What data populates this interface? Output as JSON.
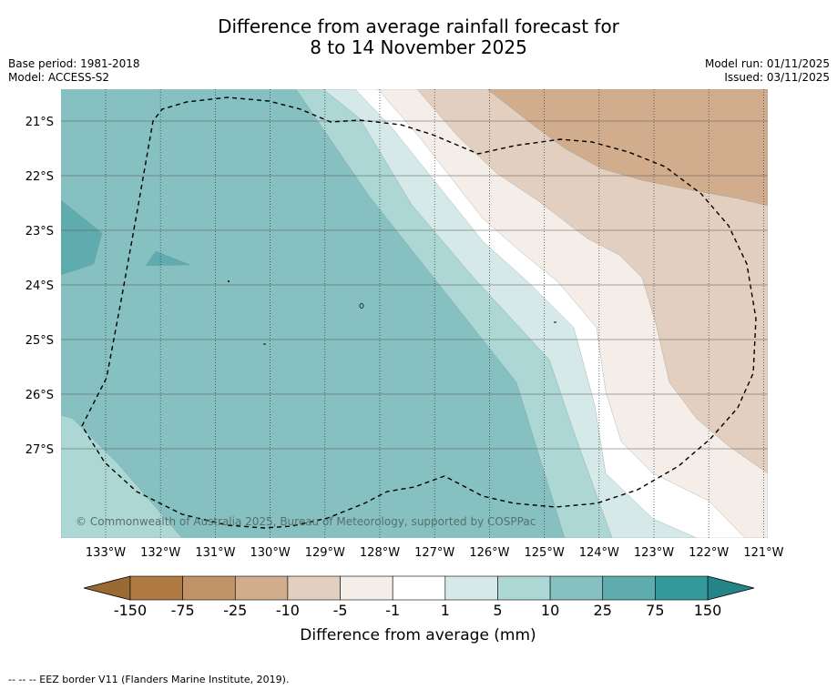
{
  "title": {
    "line1": "Difference from average rainfall forecast for",
    "line2": "8 to 14 November 2025"
  },
  "meta_left": {
    "base_period": "Base period: 1981-2018",
    "model": "Model: ACCESS-S2"
  },
  "meta_right": {
    "model_run": "Model run: 01/11/2025",
    "issued": "Issued: 03/11/2025"
  },
  "map": {
    "lon_labels": [
      "133°W",
      "132°W",
      "131°W",
      "130°W",
      "129°W",
      "128°W",
      "127°W",
      "126°W",
      "125°W",
      "124°W",
      "123°W",
      "122°W",
      "121°W"
    ],
    "lat_labels": [
      "21°S",
      "22°S",
      "23°S",
      "24°S",
      "25°S",
      "26°S",
      "27°S"
    ],
    "copyright": "© Commonwealth of Australia 2025, Bureau of Meteorology, supported by COSPPac",
    "boundary_label": "EEZ border"
  },
  "colorbar": {
    "tick_labels": [
      "-150",
      "-75",
      "-25",
      "-10",
      "-5",
      "-1",
      "1",
      "5",
      "10",
      "25",
      "75",
      "150"
    ],
    "colors": [
      "#af7a44",
      "#c09368",
      "#d1ad8e",
      "#e3cfbf",
      "#f5ede8",
      "#ffffff",
      "#d5e9e8",
      "#acd7d5",
      "#86c0c0",
      "#5eacad",
      "#34999a"
    ],
    "under_color": "#9a6a35",
    "over_color": "#258586",
    "label": "Difference from average (mm)"
  },
  "footer": "--  --  -- EEZ border V11 (Flanders Marine Institute, 2019)."
}
